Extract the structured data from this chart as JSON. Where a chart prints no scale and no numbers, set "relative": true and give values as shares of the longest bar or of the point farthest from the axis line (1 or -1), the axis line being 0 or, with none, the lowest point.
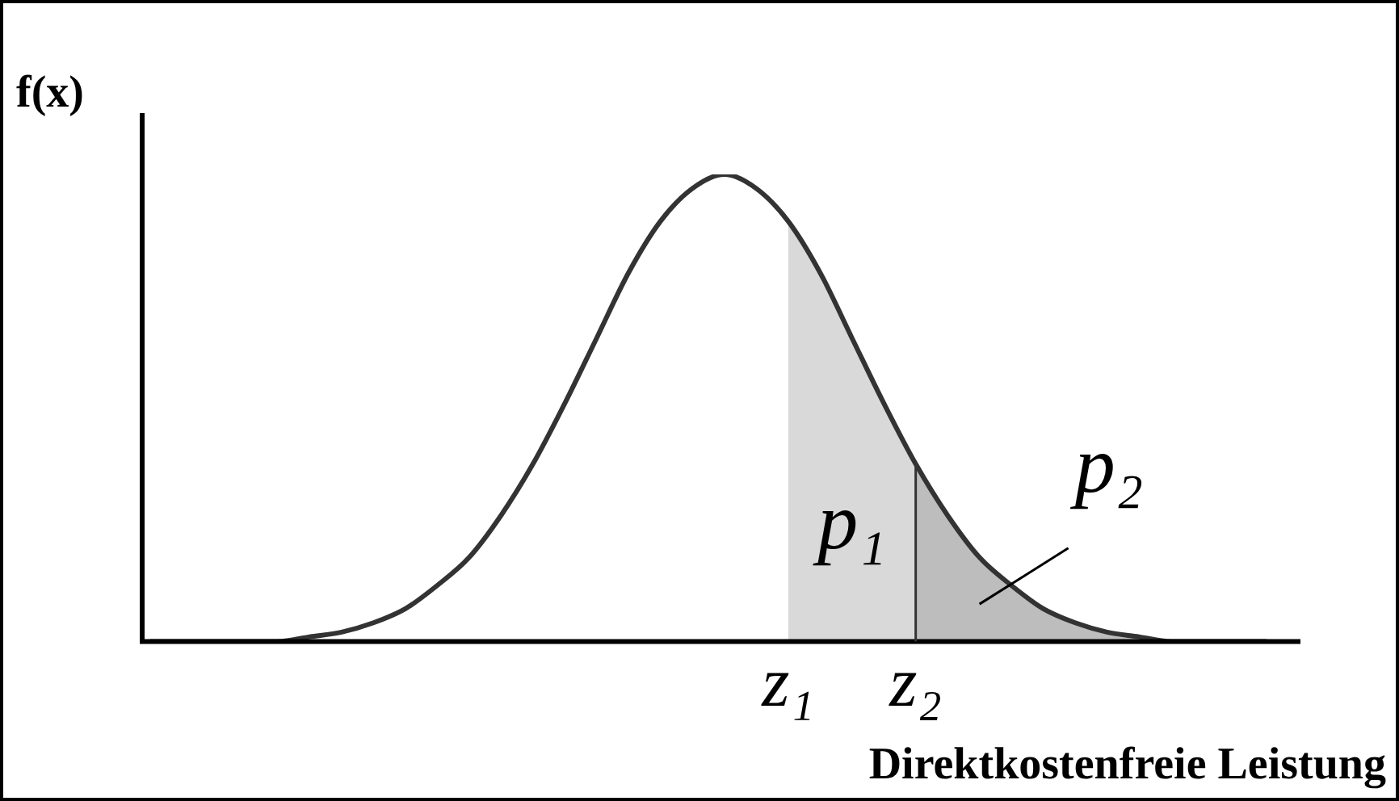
{
  "chart_data": {
    "type": "line",
    "relative": true,
    "xlabel": "Direktkostenfreie Leistung",
    "ylabel": "f(x)",
    "categories": [
      null,
      null,
      null,
      null,
      null,
      null,
      null,
      null,
      null,
      null,
      null,
      null,
      null,
      null,
      null,
      null,
      null,
      null,
      null,
      null,
      "z₁",
      null,
      null,
      null,
      "z₂",
      null,
      null,
      null,
      null,
      null,
      null,
      null,
      null,
      null,
      null,
      null
    ],
    "series": [
      {
        "color": "#333333",
        "values": [
          0,
          0,
          0,
          0,
          0,
          0.01,
          0.02,
          0.04,
          0.07,
          0.12,
          0.18,
          0.27,
          0.38,
          0.51,
          0.65,
          0.79,
          0.9,
          0.97,
          1,
          0.97,
          0.9,
          0.79,
          0.65,
          0.51,
          0.38,
          0.27,
          0.18,
          0.12,
          0.07,
          0.04,
          0.02,
          0.01,
          0,
          0,
          0,
          0
        ]
      },
      {
        "type": "area",
        "color": "#d9d9d9",
        "values": [
          null,
          null,
          null,
          null,
          null,
          null,
          null,
          null,
          null,
          null,
          null,
          null,
          null,
          null,
          null,
          null,
          null,
          null,
          null,
          null,
          0.9,
          0.79,
          0.65,
          0.51,
          0.38,
          null,
          null,
          null,
          null,
          null,
          null,
          null,
          null,
          null,
          null,
          null
        ]
      },
      {
        "type": "area",
        "color": "#bdbdbd",
        "values": [
          null,
          null,
          null,
          null,
          null,
          null,
          null,
          null,
          null,
          null,
          null,
          null,
          null,
          null,
          null,
          null,
          null,
          null,
          null,
          null,
          null,
          null,
          null,
          null,
          0.38,
          0.27,
          0.18,
          0.12,
          0.07,
          0.04,
          0.02,
          0.01,
          0,
          0,
          0,
          0
        ]
      }
    ],
    "ref_lines": [
      {
        "axis": "x",
        "value": "z₂",
        "color": "#333333"
      }
    ],
    "annotations": [
      "p₁",
      "p₂"
    ],
    "legend": false,
    "grid": false,
    "marker": "none"
  }
}
